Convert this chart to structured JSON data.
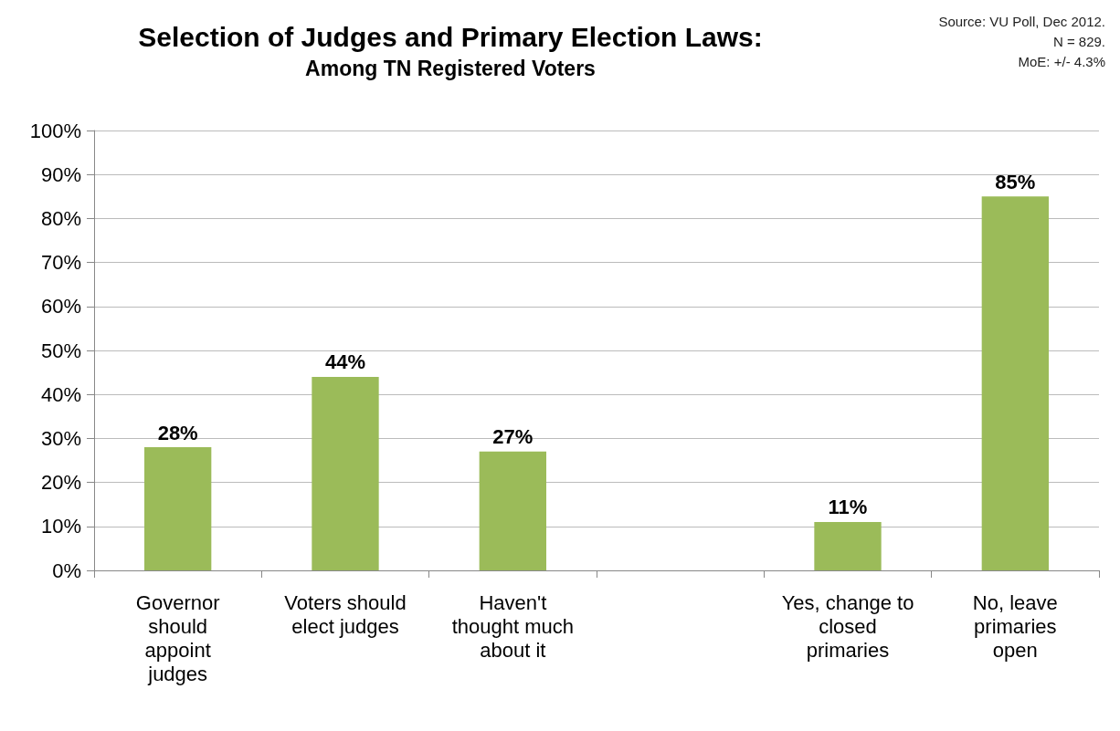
{
  "chart_data": {
    "type": "bar",
    "title": "Selection of Judges and Primary Election Laws:",
    "subtitle": "Among TN Registered Voters",
    "annotations": [
      "Source: VU Poll, Dec 2012.",
      "N = 829.",
      "MoE: +/- 4.3%"
    ],
    "categories": [
      "Governor\nshould\nappoint\njudges",
      "Voters should\nelect judges",
      "Haven't\nthought much\nabout it",
      null,
      "Yes, change to\nclosed\nprimaries",
      "No, leave\nprimaries\nopen"
    ],
    "values": [
      28,
      44,
      27,
      null,
      11,
      85
    ],
    "value_labels": [
      "28%",
      "44%",
      "27%",
      null,
      "11%",
      "85%"
    ],
    "color": "#9bbb59",
    "ylim": [
      0,
      100
    ],
    "yticks": [
      {
        "value": 0,
        "label": "0%"
      },
      {
        "value": 10,
        "label": "10%"
      },
      {
        "value": 20,
        "label": "20%"
      },
      {
        "value": 30,
        "label": "30%"
      },
      {
        "value": 40,
        "label": "40%"
      },
      {
        "value": 50,
        "label": "50%"
      },
      {
        "value": 60,
        "label": "60%"
      },
      {
        "value": 70,
        "label": "70%"
      },
      {
        "value": 80,
        "label": "80%"
      },
      {
        "value": 90,
        "label": "90%"
      },
      {
        "value": 100,
        "label": "100%"
      }
    ],
    "grid": "y"
  }
}
